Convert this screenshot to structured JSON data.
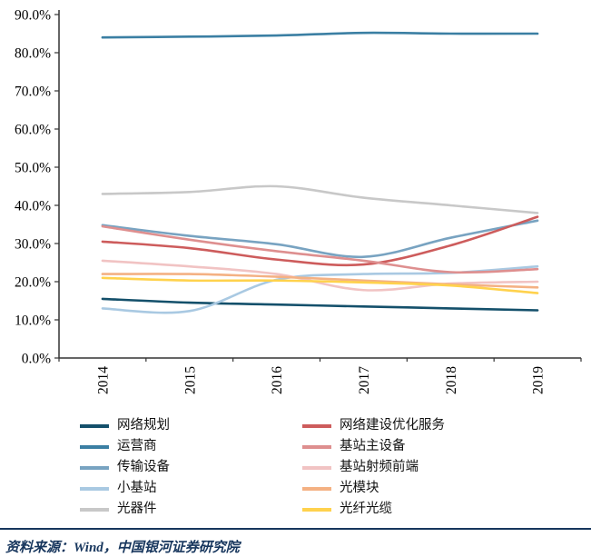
{
  "chart_data": {
    "type": "line",
    "title": "",
    "xlabel": "",
    "ylabel": "",
    "x": [
      "2014",
      "2015",
      "2016",
      "2017",
      "2018",
      "2019"
    ],
    "ylim": [
      0,
      90
    ],
    "y_ticks": [
      "0.0%",
      "10.0%",
      "20.0%",
      "30.0%",
      "40.0%",
      "50.0%",
      "60.0%",
      "70.0%",
      "80.0%",
      "90.0%"
    ],
    "grid": false,
    "legend_position": "bottom",
    "series": [
      {
        "name": "网络规划",
        "color": "#14506b",
        "values": [
          15.5,
          14.5,
          14.0,
          13.5,
          13.0,
          12.5
        ]
      },
      {
        "name": "运营商",
        "color": "#3b7fa3",
        "values": [
          84.0,
          84.2,
          84.5,
          85.2,
          85.0,
          85.0
        ]
      },
      {
        "name": "传输设备",
        "color": "#78a3c1",
        "values": [
          34.8,
          32.0,
          29.8,
          26.5,
          31.5,
          36.0
        ]
      },
      {
        "name": "小基站",
        "color": "#a9c9e2",
        "values": [
          13.0,
          12.3,
          20.5,
          22.0,
          22.3,
          24.0
        ]
      },
      {
        "name": "光器件",
        "color": "#c8c8c8",
        "values": [
          43.0,
          43.5,
          45.0,
          42.0,
          40.0,
          38.0
        ]
      },
      {
        "name": "网络建设优化服务",
        "color": "#cd5c5c",
        "values": [
          30.5,
          28.8,
          25.8,
          24.5,
          29.5,
          37.0
        ]
      },
      {
        "name": "基站主设备",
        "color": "#de8f8f",
        "values": [
          34.5,
          31.0,
          28.0,
          25.5,
          22.5,
          23.3
        ]
      },
      {
        "name": "基站射频前端",
        "color": "#f1c3c3",
        "values": [
          25.5,
          24.0,
          22.0,
          17.8,
          19.5,
          20.0
        ]
      },
      {
        "name": "光模块",
        "color": "#f4b183",
        "values": [
          22.0,
          22.0,
          21.3,
          20.3,
          19.3,
          18.5
        ]
      },
      {
        "name": "光纤光缆",
        "color": "#ffd24d",
        "values": [
          21.0,
          20.3,
          20.3,
          19.8,
          19.0,
          17.0
        ]
      }
    ]
  },
  "source_note": "资料来源：Wind，中国银河证券研究院"
}
